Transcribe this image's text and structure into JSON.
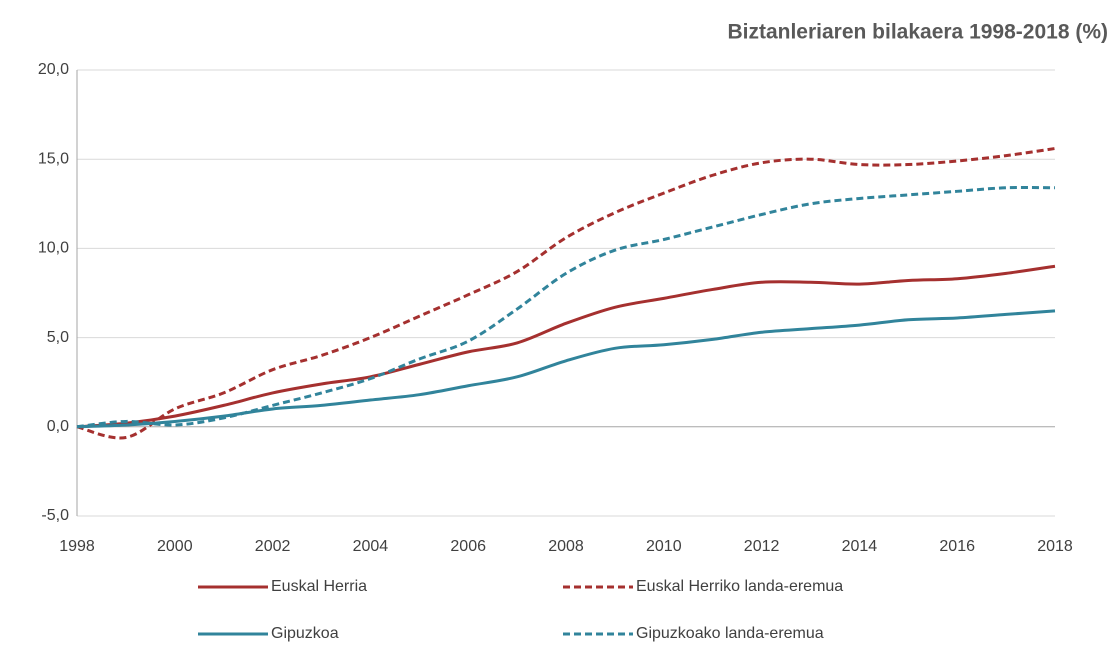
{
  "chart_data": {
    "type": "line",
    "title": "Biztanleriaren bilakaera 1998-2018 (%)",
    "x": [
      1998,
      1999,
      2000,
      2001,
      2002,
      2003,
      2004,
      2005,
      2006,
      2007,
      2008,
      2009,
      2010,
      2011,
      2012,
      2013,
      2014,
      2015,
      2016,
      2017,
      2018
    ],
    "series": [
      {
        "name": "Euskal Herria",
        "color": "#a5302f",
        "dashed": false,
        "values": [
          0,
          0.2,
          0.6,
          1.2,
          1.9,
          2.4,
          2.8,
          3.5,
          4.2,
          4.7,
          5.8,
          6.7,
          7.2,
          7.7,
          8.1,
          8.1,
          8.0,
          8.2,
          8.3,
          8.6,
          9.0
        ]
      },
      {
        "name": "Euskal Herriko landa-eremua",
        "color": "#a5302f",
        "dashed": true,
        "values": [
          0,
          -0.6,
          1.0,
          1.9,
          3.2,
          4.0,
          5.0,
          6.2,
          7.4,
          8.7,
          10.6,
          12.0,
          13.1,
          14.1,
          14.8,
          15.0,
          14.7,
          14.7,
          14.9,
          15.2,
          15.6
        ]
      },
      {
        "name": "Gipuzkoa",
        "color": "#31849b",
        "dashed": false,
        "values": [
          0,
          0.1,
          0.3,
          0.6,
          1.0,
          1.2,
          1.5,
          1.8,
          2.3,
          2.8,
          3.7,
          4.4,
          4.6,
          4.9,
          5.3,
          5.5,
          5.7,
          6.0,
          6.1,
          6.3,
          6.5
        ]
      },
      {
        "name": "Gipuzkoako landa-eremua",
        "color": "#31849b",
        "dashed": true,
        "values": [
          0,
          0.3,
          0.1,
          0.5,
          1.2,
          1.9,
          2.7,
          3.8,
          4.8,
          6.6,
          8.6,
          9.9,
          10.5,
          11.2,
          11.9,
          12.5,
          12.8,
          13.0,
          13.2,
          13.4,
          13.4
        ]
      }
    ],
    "xlim": [
      1998,
      2018
    ],
    "xticks": [
      1998,
      2000,
      2002,
      2004,
      2006,
      2008,
      2010,
      2012,
      2014,
      2016,
      2018
    ],
    "ylim": [
      -5,
      20
    ],
    "yticks": [
      {
        "value": -5,
        "label": "-5,0"
      },
      {
        "value": 0,
        "label": "0,0"
      },
      {
        "value": 5,
        "label": "5,0"
      },
      {
        "value": 10,
        "label": "10,0"
      },
      {
        "value": 15,
        "label": "15,0"
      },
      {
        "value": 20,
        "label": "20,0"
      }
    ],
    "grid": true
  }
}
